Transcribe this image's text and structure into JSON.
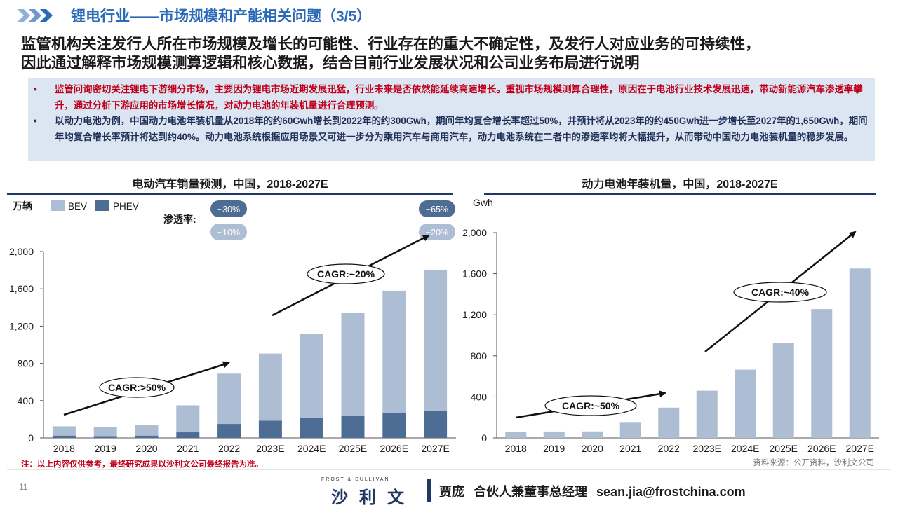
{
  "header": {
    "title": "锂电行业——市场规模和产能相关问题（3/5）",
    "subtitle_line1": "监管机构关注发行人所在市场规模及增长的可能性、行业存在的重大不确定性，及发行人对应业务的可持续性，",
    "subtitle_line2": "因此通过解释市场规模测算逻辑和核心数据，结合目前行业发展状况和公司业务布局进行说明"
  },
  "notes": {
    "bullet_symbol": "•",
    "bullet1": "监管问询密切关注锂电下游细分市场，主要因为锂电市场近期发展迅猛，行业未来是否依然能延续高速增长。重视市场规模测算合理性，原因在于电池行业技术发展迅速，带动新能源汽车渗透率攀升，通过分析下游应用的市场增长情况，对动力电池的年装机量进行合理预测。",
    "bullet2": "以动力电池为例，中国动力电池年装机量从2018年的约60Gwh增长到2022年的约300Gwh，期间年均复合增长率超过50%，并预计将从2023年的约450Gwh进一步增长至2027年的1,650Gwh，期间年均复合增长率预计将达到约40%。动力电池系统根据应用场景又可进一步分为乘用汽车与商用汽车，动力电池系统在二者中的渗透率均将大幅提升，从而带动中国动力电池装机量的稳步发展。"
  },
  "chart_data": [
    {
      "type": "bar",
      "stacked": true,
      "title": "电动汽车销量预测，中国，2018-2027E",
      "ylabel": "万辆",
      "ylim": [
        0,
        2000
      ],
      "yticks": [
        "0",
        "400",
        "800",
        "1,200",
        "1,600",
        "2,000"
      ],
      "ytick_values": [
        0,
        400,
        800,
        1200,
        1600,
        2000
      ],
      "categories": [
        "2018",
        "2019",
        "2020",
        "2021",
        "2022",
        "2023E",
        "2024E",
        "2025E",
        "2026E",
        "2027E"
      ],
      "series": [
        {
          "name": "PHEV",
          "color": "#4e6d94",
          "values": [
            25,
            20,
            25,
            60,
            150,
            185,
            215,
            240,
            270,
            295
          ]
        },
        {
          "name": "BEV",
          "color": "#adbdd3",
          "values": [
            100,
            100,
            110,
            290,
            540,
            720,
            905,
            1100,
            1310,
            1510
          ]
        }
      ],
      "legend": {
        "position": "top-left"
      },
      "penetration": {
        "label": "渗透率:",
        "first": {
          "top": "~30%",
          "bottom": "~10%"
        },
        "last": {
          "top": "~65%",
          "bottom": "~20%"
        }
      },
      "annotations": [
        "CAGR:>50%",
        "CAGR:~20%"
      ]
    },
    {
      "type": "bar",
      "title": "动力电池年装机量，中国，2018-2027E",
      "ylabel": "Gwh",
      "ylim": [
        0,
        2000
      ],
      "yticks": [
        "0",
        "400",
        "800",
        "1,200",
        "1,600",
        "2,000"
      ],
      "ytick_values": [
        0,
        400,
        800,
        1200,
        1600,
        2000
      ],
      "categories": [
        "2018",
        "2019",
        "2020",
        "2021",
        "2022",
        "2023E",
        "2024E",
        "2025E",
        "2026E",
        "2027E"
      ],
      "series": [
        {
          "name": "",
          "color": "#adbdd3",
          "values": [
            57,
            62,
            63,
            155,
            295,
            460,
            665,
            925,
            1255,
            1650
          ]
        }
      ],
      "annotations": [
        "CAGR:~50%",
        "CAGR:~40%"
      ]
    }
  ],
  "footer": {
    "note": "注：以上内容仅供参考，最终研究成果以沙利文公司最终报告为准。",
    "source": "资料来源：公开资料，沙利文公司",
    "page": "11",
    "brand_small": "FROST & SULLIVAN",
    "brand": "沙利文",
    "contact_name": "贾庞",
    "contact_title": "合伙人兼董事总经理",
    "contact_email": "sean.jia@frostchina.com"
  }
}
